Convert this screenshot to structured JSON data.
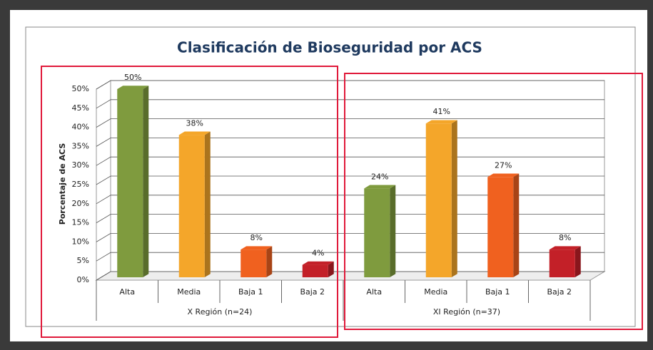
{
  "chart_data": {
    "type": "bar3d",
    "title": "Clasificación de Bioseguridad  por ACS",
    "ylabel": "Porcentaje de ACS",
    "categories": [
      "Alta",
      "Media",
      "Baja 1",
      "Baja 2"
    ],
    "colors": [
      "#7f9b3e",
      "#f4a62a",
      "#f0611f",
      "#c32028"
    ],
    "panels": [
      {
        "group": "X Región (n=24)",
        "values": [
          50,
          38,
          8,
          4
        ],
        "value_labels": [
          "50%",
          "38%",
          "8%",
          "4%"
        ]
      },
      {
        "group": "XI Región (n=37)",
        "values": [
          24,
          41,
          27,
          8
        ],
        "value_labels": [
          "24%",
          "41%",
          "27%",
          "8%"
        ]
      }
    ],
    "ylim": [
      0,
      50
    ],
    "yticks": [
      {
        "value": 0,
        "label": "0%"
      },
      {
        "value": 5,
        "label": "5%"
      },
      {
        "value": 10,
        "label": "10%"
      },
      {
        "value": 15,
        "label": "15%"
      },
      {
        "value": 20,
        "label": "20%"
      },
      {
        "value": 25,
        "label": "25%"
      },
      {
        "value": 30,
        "label": "30%"
      },
      {
        "value": 35,
        "label": "35%"
      },
      {
        "value": 40,
        "label": "40%"
      },
      {
        "value": 45,
        "label": "45%"
      },
      {
        "value": 50,
        "label": "50%"
      }
    ],
    "grid": true
  }
}
